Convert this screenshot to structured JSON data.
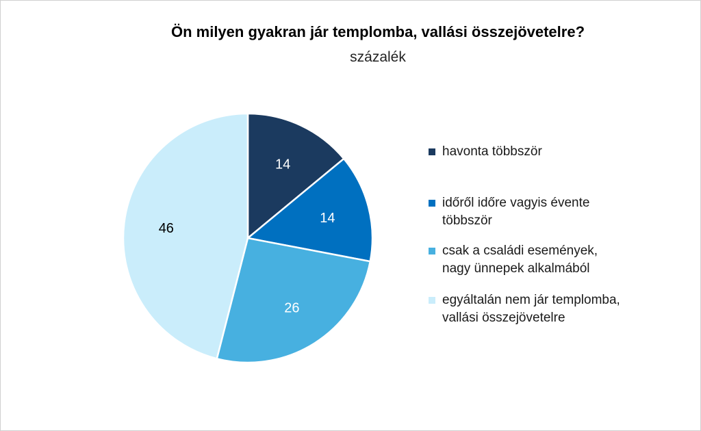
{
  "chart_data": {
    "type": "pie",
    "title": "Ön milyen gyakran jár templomba, vallási összejövetelre?",
    "subtitle": "százalék",
    "categories": [
      "havonta többször",
      "időről időre vagyis évente többször",
      "csak a családi események, nagy ünnepek alkalmából",
      "egyáltalán nem jár templomba, vallási összejövetelre"
    ],
    "values": [
      14,
      14,
      26,
      46
    ],
    "data_labels": [
      "14",
      "14",
      "26",
      "46"
    ],
    "colors": [
      "#1b3a5f",
      "#0070c0",
      "#47b0e0",
      "#caedfb"
    ],
    "label_colors": [
      "#ffffff",
      "#ffffff",
      "#ffffff",
      "#000000"
    ],
    "legend": {
      "placement": "right",
      "lines": [
        [
          "havonta többször"
        ],
        [
          "időről időre vagyis évente",
          "többször"
        ],
        [
          "csak a családi események,",
          "nagy ünnepek alkalmából"
        ],
        [
          "egyáltalán nem jár templomba,",
          "vallási összejövetelre"
        ]
      ]
    }
  }
}
